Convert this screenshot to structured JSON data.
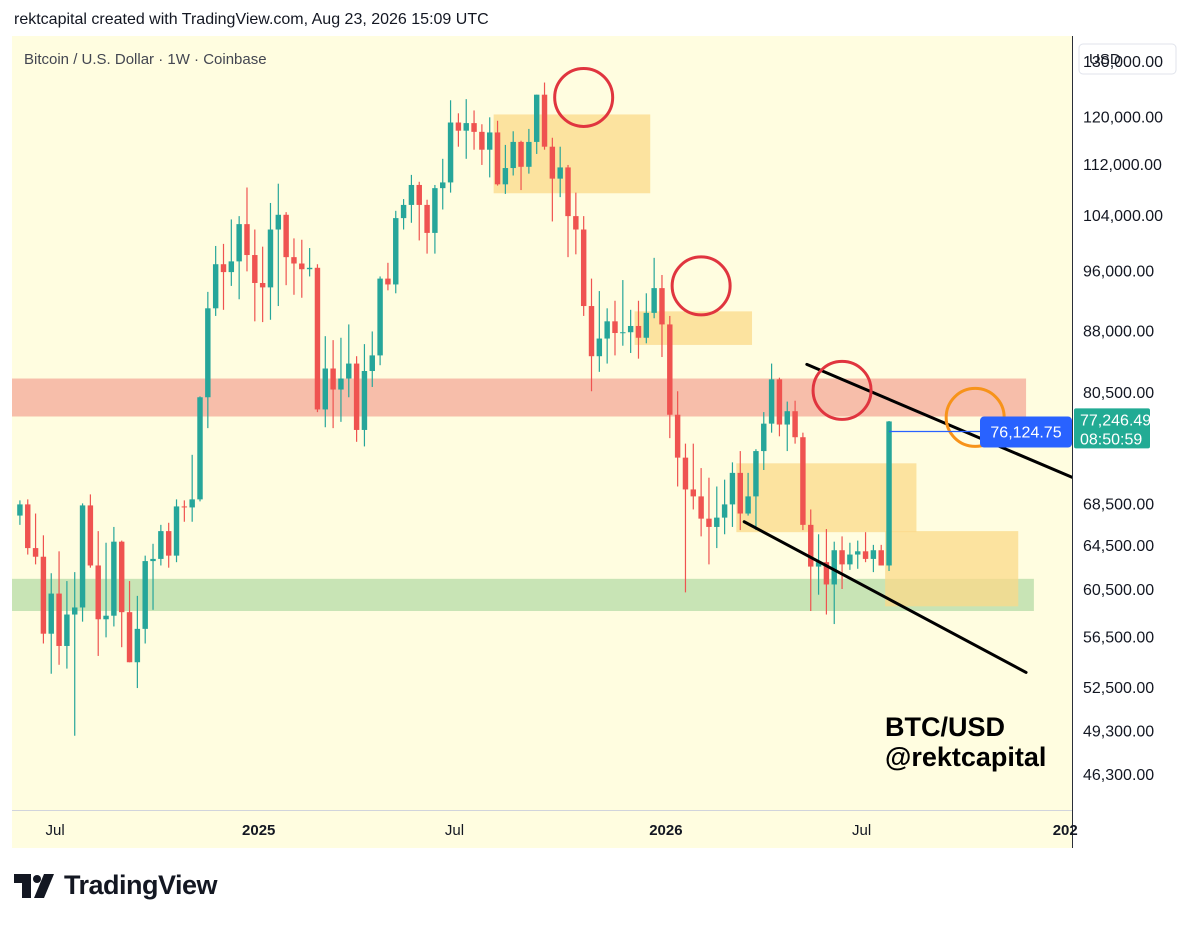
{
  "header": {
    "caption": "rektcapital created with TradingView.com, Aug 23, 2026 15:09 UTC"
  },
  "footer": {
    "brand": "TradingView"
  },
  "colors": {
    "background": "#fffde0",
    "up": "#26a69a",
    "down": "#ef5350",
    "resistance_zone": "#f7bba7",
    "support_zone": "#c5e3b2",
    "consolidation_box": "#fbd98a",
    "top_circle": "#e0353f",
    "breakout_circle": "#f7931a",
    "price_label": "#2962ff",
    "current_price_label": "#22ab94"
  },
  "chart_data": {
    "type": "candlestick",
    "title": "Bitcoin / U.S. Dollar · 1W · Coinbase",
    "currency_button": "USD",
    "y_scale": "log",
    "ylim": [
      44000,
      135000
    ],
    "y_ticks": [
      "130,000.00",
      "120,000.00",
      "112,000.00",
      "104,000.00",
      "96,000.00",
      "88,000.00",
      "80,500.00",
      "68,500.00",
      "64,500.00",
      "60,500.00",
      "56,500.00",
      "52,500.00",
      "49,300.00",
      "46,300.00"
    ],
    "x_ticks": [
      {
        "label": "Jul",
        "bar": 5,
        "bold": false
      },
      {
        "label": "2025",
        "bar": 31,
        "bold": true
      },
      {
        "label": "Jul",
        "bar": 56,
        "bold": false
      },
      {
        "label": "2026",
        "bar": 83,
        "bold": true
      },
      {
        "label": "Jul",
        "bar": 108,
        "bold": false
      },
      {
        "label": "202",
        "bar": 134,
        "bold": true
      }
    ],
    "candles": [
      [
        67400,
        68900,
        66500,
        68500
      ],
      [
        68500,
        69000,
        63700,
        64300
      ],
      [
        64300,
        67600,
        62800,
        63500
      ],
      [
        63500,
        65500,
        56000,
        56800
      ],
      [
        56800,
        62000,
        53600,
        60200
      ],
      [
        60200,
        64000,
        54300,
        55800
      ],
      [
        55800,
        61300,
        54000,
        58400
      ],
      [
        58400,
        62100,
        49000,
        59000
      ],
      [
        59000,
        68600,
        57800,
        68400
      ],
      [
        68400,
        69500,
        62500,
        62700
      ],
      [
        62700,
        65900,
        55000,
        58000
      ],
      [
        58000,
        64800,
        56500,
        58300
      ],
      [
        58300,
        66300,
        57400,
        64900
      ],
      [
        64900,
        65000,
        55700,
        58600
      ],
      [
        58600,
        61300,
        54500,
        54500
      ],
      [
        54500,
        60000,
        52500,
        57200
      ],
      [
        57200,
        63600,
        56000,
        63100
      ],
      [
        63100,
        64700,
        58800,
        63300
      ],
      [
        63300,
        66500,
        62700,
        65900
      ],
      [
        65900,
        66700,
        62500,
        63600
      ],
      [
        63600,
        69000,
        63000,
        68300
      ],
      [
        68300,
        68900,
        66800,
        68200
      ],
      [
        68200,
        73600,
        66800,
        69000
      ],
      [
        69000,
        80100,
        68800,
        80000
      ],
      [
        80000,
        93200,
        76500,
        91000
      ],
      [
        91000,
        99600,
        90000,
        97000
      ],
      [
        97000,
        99900,
        90800,
        95900
      ],
      [
        95900,
        103500,
        94000,
        97400
      ],
      [
        97400,
        104000,
        92200,
        102800
      ],
      [
        102800,
        108400,
        96000,
        98300
      ],
      [
        98300,
        102000,
        89300,
        94400
      ],
      [
        94400,
        99500,
        89200,
        93800
      ],
      [
        93800,
        106000,
        89500,
        102000
      ],
      [
        102000,
        109000,
        91300,
        104200
      ],
      [
        104200,
        104600,
        94100,
        98000
      ],
      [
        98000,
        100700,
        92800,
        97100
      ],
      [
        97100,
        100500,
        92400,
        96300
      ],
      [
        96300,
        99300,
        95300,
        96500
      ],
      [
        96500,
        97000,
        78300,
        78600
      ],
      [
        78600,
        87400,
        76600,
        83400
      ],
      [
        83400,
        86900,
        76500,
        80900
      ],
      [
        80900,
        87200,
        77200,
        82200
      ],
      [
        82200,
        88900,
        80000,
        84000
      ],
      [
        84000,
        84900,
        75000,
        76300
      ],
      [
        76300,
        86400,
        74500,
        83100
      ],
      [
        83100,
        88000,
        81200,
        85000
      ],
      [
        85000,
        95300,
        83800,
        95000
      ],
      [
        95000,
        97200,
        93400,
        94200
      ],
      [
        94200,
        104800,
        93000,
        103700
      ],
      [
        103700,
        106600,
        102000,
        105700
      ],
      [
        105700,
        110400,
        103000,
        108800
      ],
      [
        108800,
        109300,
        100400,
        105700
      ],
      [
        105700,
        106500,
        98500,
        101500
      ],
      [
        101500,
        108800,
        98500,
        108300
      ],
      [
        108300,
        113000,
        105000,
        109200
      ],
      [
        109200,
        123000,
        107600,
        119100
      ],
      [
        119100,
        120700,
        115000,
        117700
      ],
      [
        117700,
        123200,
        113000,
        119000
      ],
      [
        119000,
        121200,
        114500,
        117500
      ],
      [
        117500,
        118800,
        112000,
        114500
      ],
      [
        114500,
        120000,
        110000,
        117400
      ],
      [
        117400,
        119400,
        108700,
        108900
      ],
      [
        108900,
        115300,
        107400,
        111500
      ],
      [
        111500,
        117600,
        110300,
        115800
      ],
      [
        115800,
        116000,
        108000,
        111700
      ],
      [
        111700,
        118000,
        110600,
        115800
      ],
      [
        115800,
        124000,
        113800,
        124000
      ],
      [
        124000,
        126200,
        114500,
        115000
      ],
      [
        115000,
        116500,
        103200,
        109800
      ],
      [
        109800,
        115000,
        106900,
        111600
      ],
      [
        111600,
        112000,
        98000,
        104000
      ],
      [
        104000,
        107600,
        98400,
        102000
      ],
      [
        102000,
        104000,
        90000,
        91300
      ],
      [
        91300,
        95000,
        80700,
        84900
      ],
      [
        84900,
        93300,
        83000,
        87100
      ],
      [
        87100,
        91000,
        84000,
        89300
      ],
      [
        89300,
        92000,
        85000,
        87800
      ],
      [
        87800,
        94800,
        86200,
        87900
      ],
      [
        87900,
        90800,
        85300,
        88700
      ],
      [
        88700,
        92000,
        84600,
        87200
      ],
      [
        87200,
        93000,
        86500,
        90400
      ],
      [
        90400,
        97900,
        89700,
        93700
      ],
      [
        93700,
        95500,
        84800,
        88900
      ],
      [
        88900,
        90000,
        75400,
        78000
      ],
      [
        78000,
        80700,
        70300,
        73300
      ],
      [
        73300,
        74800,
        60300,
        70000
      ],
      [
        70000,
        74800,
        68000,
        69300
      ],
      [
        69300,
        72200,
        65400,
        67100
      ],
      [
        67100,
        71200,
        62800,
        66300
      ],
      [
        66300,
        70300,
        64300,
        67200
      ],
      [
        67200,
        71000,
        65600,
        68500
      ],
      [
        68500,
        72800,
        66300,
        71700
      ],
      [
        71700,
        74000,
        66000,
        67600
      ],
      [
        67600,
        71700,
        67400,
        69300
      ],
      [
        69300,
        74200,
        66000,
        74000
      ],
      [
        74000,
        78300,
        72000,
        77000
      ],
      [
        77000,
        84000,
        76000,
        82100
      ],
      [
        82100,
        82300,
        75600,
        76900
      ],
      [
        76900,
        79500,
        74000,
        78400
      ],
      [
        78400,
        79600,
        74800,
        75500
      ],
      [
        75500,
        76000,
        66000,
        66500
      ],
      [
        66500,
        68000,
        58700,
        62600
      ],
      [
        62600,
        65600,
        60100,
        63000
      ],
      [
        63000,
        66100,
        58400,
        61000
      ],
      [
        61000,
        64900,
        57600,
        64100
      ],
      [
        64100,
        65400,
        60600,
        62800
      ],
      [
        62800,
        64800,
        62300,
        63700
      ],
      [
        63700,
        65000,
        62400,
        64000
      ],
      [
        64000,
        65800,
        63000,
        63300
      ],
      [
        63300,
        64600,
        62100,
        64100
      ],
      [
        64100,
        64600,
        62700,
        62700
      ],
      [
        62700,
        77300,
        62200,
        77246
      ]
    ],
    "zones": [
      {
        "label": "resistance",
        "from_bar": -1,
        "to_bar": 129,
        "low": 77800,
        "high": 82200,
        "color": "resistance_zone"
      },
      {
        "label": "support",
        "from_bar": -1,
        "to_bar": 130,
        "low": 58700,
        "high": 61500,
        "color": "support_zone"
      }
    ],
    "boxes": [
      {
        "from_bar": 61,
        "to_bar": 81,
        "low": 107500,
        "high": 120500
      },
      {
        "from_bar": 79,
        "to_bar": 94,
        "low": 86300,
        "high": 90600
      },
      {
        "from_bar": 92,
        "to_bar": 115,
        "low": 65800,
        "high": 72700
      },
      {
        "from_bar": 111,
        "to_bar": 128,
        "low": 59100,
        "high": 65900
      }
    ],
    "trendlines": [
      {
        "x1_bar": 101,
        "y1": 83900,
        "x2_bar": 140,
        "y2": 69500
      },
      {
        "x1_bar": 93,
        "y1": 66800,
        "x2_bar": 129,
        "y2": 53700
      }
    ],
    "circles": [
      {
        "bar": 72,
        "price": 123500,
        "color": "top_circle"
      },
      {
        "bar": 87,
        "price": 94000,
        "color": "top_circle"
      },
      {
        "bar": 105,
        "price": 80800,
        "color": "top_circle"
      },
      {
        "bar": 122,
        "price": 77700,
        "color": "breakout_circle"
      }
    ],
    "price_labels": {
      "line_value": "76,124.75",
      "line_price": 76124.75,
      "current_value": "77,246.49",
      "current_price": 77246.49,
      "countdown": "08:50:59"
    },
    "watermark_lines": [
      "BTC/USD",
      "@rektcapital"
    ]
  }
}
